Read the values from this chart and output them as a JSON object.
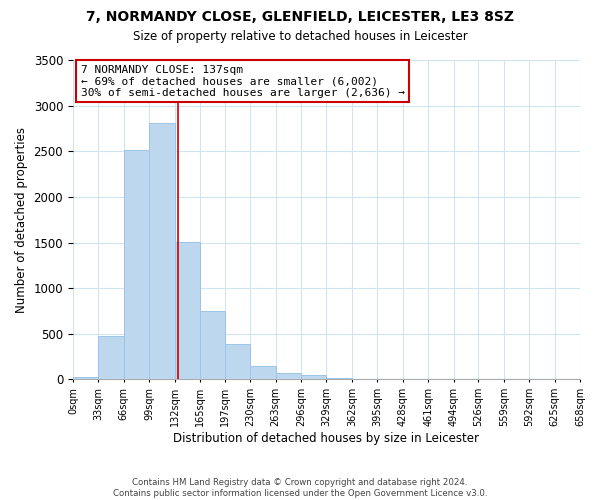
{
  "title": "7, NORMANDY CLOSE, GLENFIELD, LEICESTER, LE3 8SZ",
  "subtitle": "Size of property relative to detached houses in Leicester",
  "xlabel": "Distribution of detached houses by size in Leicester",
  "ylabel": "Number of detached properties",
  "bin_edges": [
    0,
    33,
    66,
    99,
    132,
    165,
    197,
    230,
    263,
    296,
    329,
    362,
    395,
    428,
    461,
    494,
    526,
    559,
    592,
    625,
    658
  ],
  "bin_labels": [
    "0sqm",
    "33sqm",
    "66sqm",
    "99sqm",
    "132sqm",
    "165sqm",
    "197sqm",
    "230sqm",
    "263sqm",
    "296sqm",
    "329sqm",
    "362sqm",
    "395sqm",
    "428sqm",
    "461sqm",
    "494sqm",
    "526sqm",
    "559sqm",
    "592sqm",
    "625sqm",
    "658sqm"
  ],
  "counts": [
    25,
    480,
    2510,
    2810,
    1510,
    750,
    390,
    150,
    75,
    50,
    20,
    5,
    2,
    0,
    0,
    0,
    0,
    0,
    0,
    0
  ],
  "bar_color": "#bdd7ee",
  "bar_edge_color": "#9dc3e6",
  "property_line_x": 137,
  "property_line_color": "#cc0000",
  "annotation_title": "7 NORMANDY CLOSE: 137sqm",
  "annotation_line1": "← 69% of detached houses are smaller (6,002)",
  "annotation_line2": "30% of semi-detached houses are larger (2,636) →",
  "annotation_box_color": "#cc0000",
  "ylim": [
    0,
    3500
  ],
  "yticks": [
    0,
    500,
    1000,
    1500,
    2000,
    2500,
    3000,
    3500
  ],
  "footer1": "Contains HM Land Registry data © Crown copyright and database right 2024.",
  "footer2": "Contains public sector information licensed under the Open Government Licence v3.0."
}
